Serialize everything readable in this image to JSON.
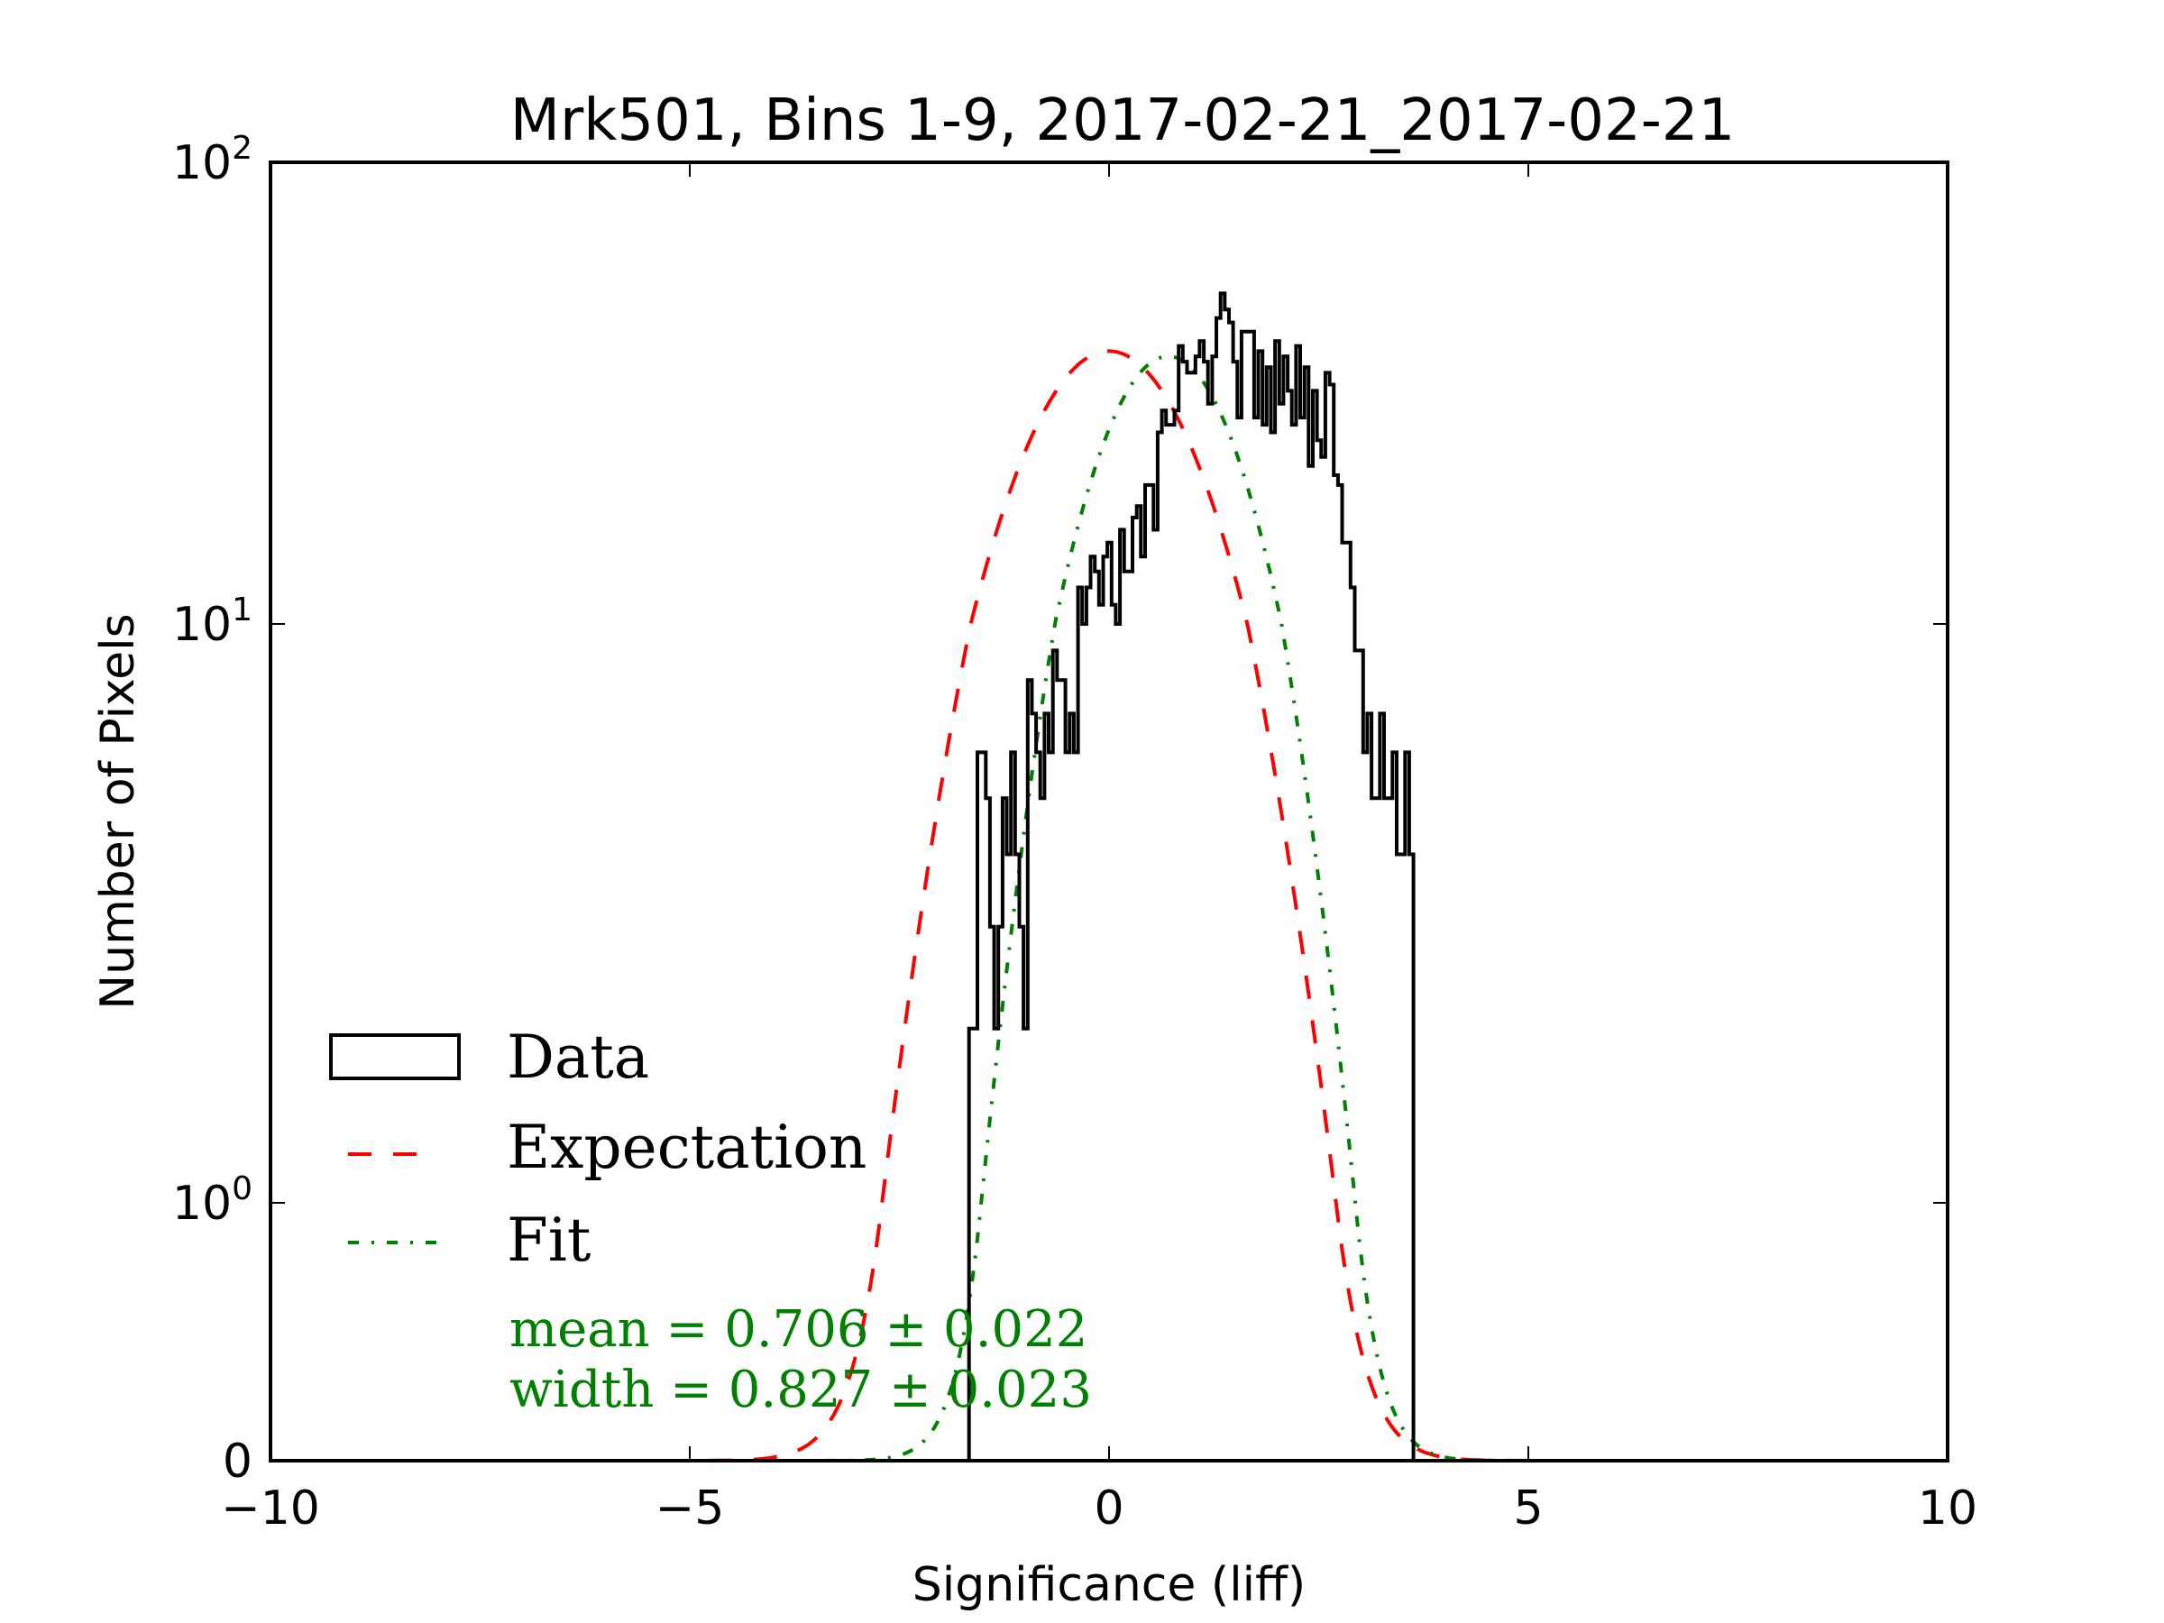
{
  "chart_data": {
    "type": "line",
    "title": "Mrk501, Bins 1-9, 2017-02-21_2017-02-21",
    "xlabel": "Significance (liff)",
    "ylabel": "Number of Pixels",
    "xlim": [
      -10,
      10
    ],
    "ylim": [
      0,
      100
    ],
    "yscale": "symlog",
    "grid": false,
    "x_ticks": [
      -10,
      -5,
      0,
      5,
      10
    ],
    "x_tick_labels": [
      "−10",
      "−5",
      "0",
      "5",
      "10"
    ],
    "y_ticks": [
      0,
      1,
      10,
      100
    ],
    "y_tick_labels": [
      {
        "base": "0",
        "exp": ""
      },
      {
        "base": "10",
        "exp": "0"
      },
      {
        "base": "10",
        "exp": "1"
      },
      {
        "base": "10",
        "exp": "2"
      }
    ],
    "legend": {
      "placement": "lower-left",
      "entries": [
        {
          "label": "Data",
          "style": "step",
          "color": "#000000"
        },
        {
          "label": "Expectation",
          "style": "dashed",
          "color": "#ff0000"
        },
        {
          "label": "Fit",
          "style": "dash-dot",
          "color": "#008000"
        }
      ]
    },
    "annotations": [
      {
        "text": "mean = 0.706 ± 0.022",
        "color": "#008000"
      },
      {
        "text": "width = 0.827 ± 0.023",
        "color": "#008000"
      }
    ],
    "series": [
      {
        "name": "Data",
        "kind": "histogram-step",
        "color": "#000000",
        "bin_start": -1.67,
        "bin_width": 0.05,
        "values": [
          2,
          2,
          6,
          6,
          5,
          3,
          2,
          3,
          5,
          4,
          6,
          4,
          3,
          2,
          8,
          7,
          6,
          5,
          7,
          6,
          9,
          8,
          8,
          6,
          7,
          6,
          12,
          10,
          12,
          14,
          13,
          11,
          14,
          15,
          11,
          10,
          16,
          13,
          13,
          17,
          18,
          14,
          20,
          20,
          16,
          26,
          29,
          27,
          27,
          29,
          40,
          37,
          35,
          35,
          38,
          41,
          37,
          30,
          38,
          46,
          52,
          48,
          45,
          37,
          28,
          43,
          43,
          43,
          28,
          39,
          27,
          36,
          26,
          41,
          30,
          38,
          32,
          27,
          40,
          28,
          36,
          22,
          32,
          25,
          23,
          35,
          33,
          21,
          20,
          15,
          15,
          12,
          9,
          9,
          6,
          7,
          5,
          5,
          7,
          5,
          5,
          6,
          4,
          4,
          6,
          4,
          0
        ]
      },
      {
        "name": "Expectation",
        "kind": "gaussian",
        "color": "#ff0000",
        "mean": 0.0,
        "sigma": 1.0,
        "amplitude": 39,
        "x_range": [
          -8,
          8
        ]
      },
      {
        "name": "Fit",
        "kind": "gaussian",
        "color": "#008000",
        "mean": 0.706,
        "sigma": 0.827,
        "amplitude": 38,
        "x_range": [
          -8,
          8
        ]
      }
    ]
  }
}
